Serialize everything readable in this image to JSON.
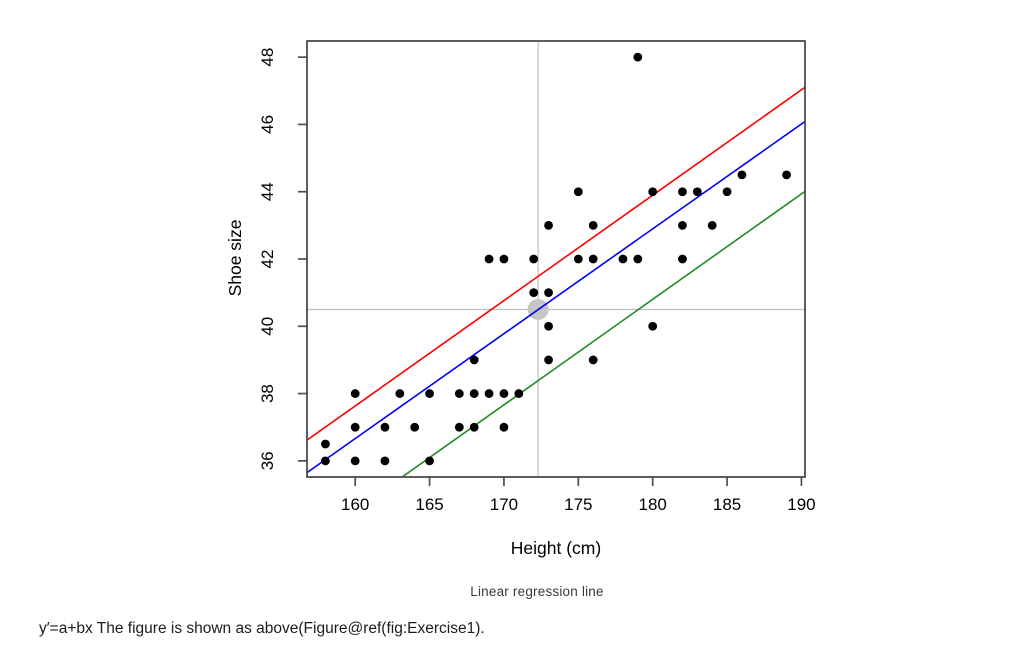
{
  "figure": {
    "caption": "Linear regression line",
    "footnote": "y′=a+bx The figure is shown as above(Figure@ref(fig:Exercise1)."
  },
  "chart_data": {
    "type": "scatter",
    "title": "",
    "xlabel": "Height (cm)",
    "ylabel": "Shoe size",
    "xlim": [
      156.76,
      190.24
    ],
    "ylim": [
      35.52,
      48.48
    ],
    "x_ticks": [
      160,
      165,
      170,
      175,
      180,
      185,
      190
    ],
    "y_ticks": [
      36,
      38,
      40,
      42,
      44,
      46,
      48
    ],
    "grid": false,
    "legend": "none",
    "points": [
      [
        158,
        36
      ],
      [
        160,
        36
      ],
      [
        162,
        36
      ],
      [
        165,
        36
      ],
      [
        158,
        36.5
      ],
      [
        160,
        37
      ],
      [
        162,
        37
      ],
      [
        164,
        37
      ],
      [
        167,
        37
      ],
      [
        168,
        37
      ],
      [
        170,
        37
      ],
      [
        160,
        38
      ],
      [
        163,
        38
      ],
      [
        165,
        38
      ],
      [
        167,
        38
      ],
      [
        168,
        38
      ],
      [
        169,
        38
      ],
      [
        170,
        38
      ],
      [
        171,
        38
      ],
      [
        168,
        39
      ],
      [
        173,
        39
      ],
      [
        176,
        39
      ],
      [
        173,
        40
      ],
      [
        180,
        40
      ],
      [
        172,
        41
      ],
      [
        173,
        41
      ],
      [
        169,
        42
      ],
      [
        170,
        42
      ],
      [
        172,
        42
      ],
      [
        175,
        42
      ],
      [
        176,
        42
      ],
      [
        178,
        42
      ],
      [
        179,
        42
      ],
      [
        182,
        42
      ],
      [
        173,
        43
      ],
      [
        176,
        43
      ],
      [
        182,
        43
      ],
      [
        184,
        43
      ],
      [
        175,
        44
      ],
      [
        180,
        44
      ],
      [
        182,
        44
      ],
      [
        183,
        44
      ],
      [
        185,
        44
      ],
      [
        186,
        44.5
      ],
      [
        189,
        44.5
      ],
      [
        179,
        48
      ]
    ],
    "point_style": {
      "color": "#000000",
      "radius": 4.4
    },
    "mean_point": {
      "x": 172.3,
      "y": 40.5,
      "radius": 10.5,
      "color": "#c6c6c6"
    },
    "crosshair": {
      "x": 172.3,
      "y": 40.5,
      "color": "#bfbfbf"
    },
    "regression_lines": [
      {
        "name": "upper-line-red",
        "color": "#ff0000",
        "slope": 0.3132,
        "intercept": -12.48
      },
      {
        "name": "fit-line-blue",
        "color": "#0000ff",
        "slope": 0.3117,
        "intercept": -13.21
      },
      {
        "name": "lower-line-green",
        "color": "#228B22",
        "slope": 0.3135,
        "intercept": -15.63
      }
    ],
    "axis_color": "#4d4d4d",
    "label_color": "#000000"
  }
}
